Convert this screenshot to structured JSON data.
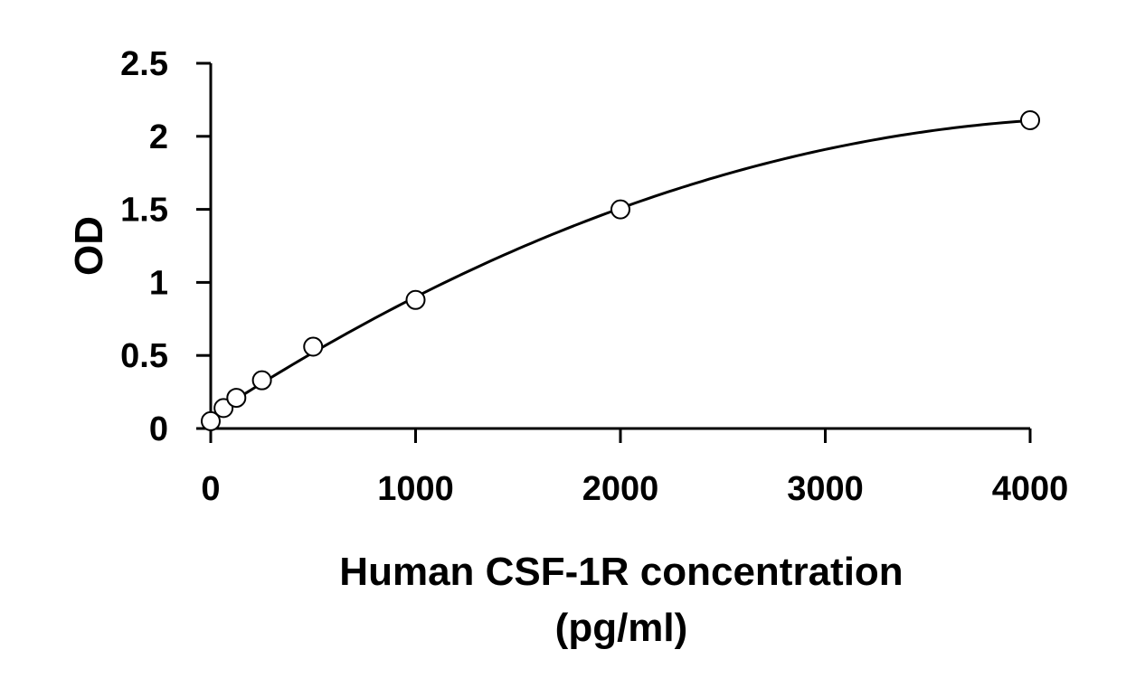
{
  "chart_data": {
    "type": "scatter",
    "title": "",
    "xlabel_lines": [
      "Human CSF-1R concentration",
      "(pg/ml)"
    ],
    "ylabel": "OD",
    "xlim": [
      0,
      4000
    ],
    "ylim": [
      0,
      2.5
    ],
    "x_ticks": [
      0,
      1000,
      2000,
      3000,
      4000
    ],
    "x_tick_labels": [
      "0",
      "1000",
      "2000",
      "3000",
      "4000"
    ],
    "y_ticks": [
      0,
      0.5,
      1,
      1.5,
      2,
      2.5
    ],
    "y_tick_labels": [
      "0",
      "0.5",
      "1",
      "1.5",
      "2",
      "2.5"
    ],
    "grid": false,
    "legend": "none",
    "series": [
      {
        "x": [
          0,
          62.5,
          125,
          250,
          500,
          1000,
          2000,
          4000
        ],
        "y": [
          0.05,
          0.14,
          0.21,
          0.33,
          0.56,
          0.88,
          1.5,
          2.11
        ],
        "marker": "open-circle",
        "fit": "curve"
      }
    ]
  }
}
